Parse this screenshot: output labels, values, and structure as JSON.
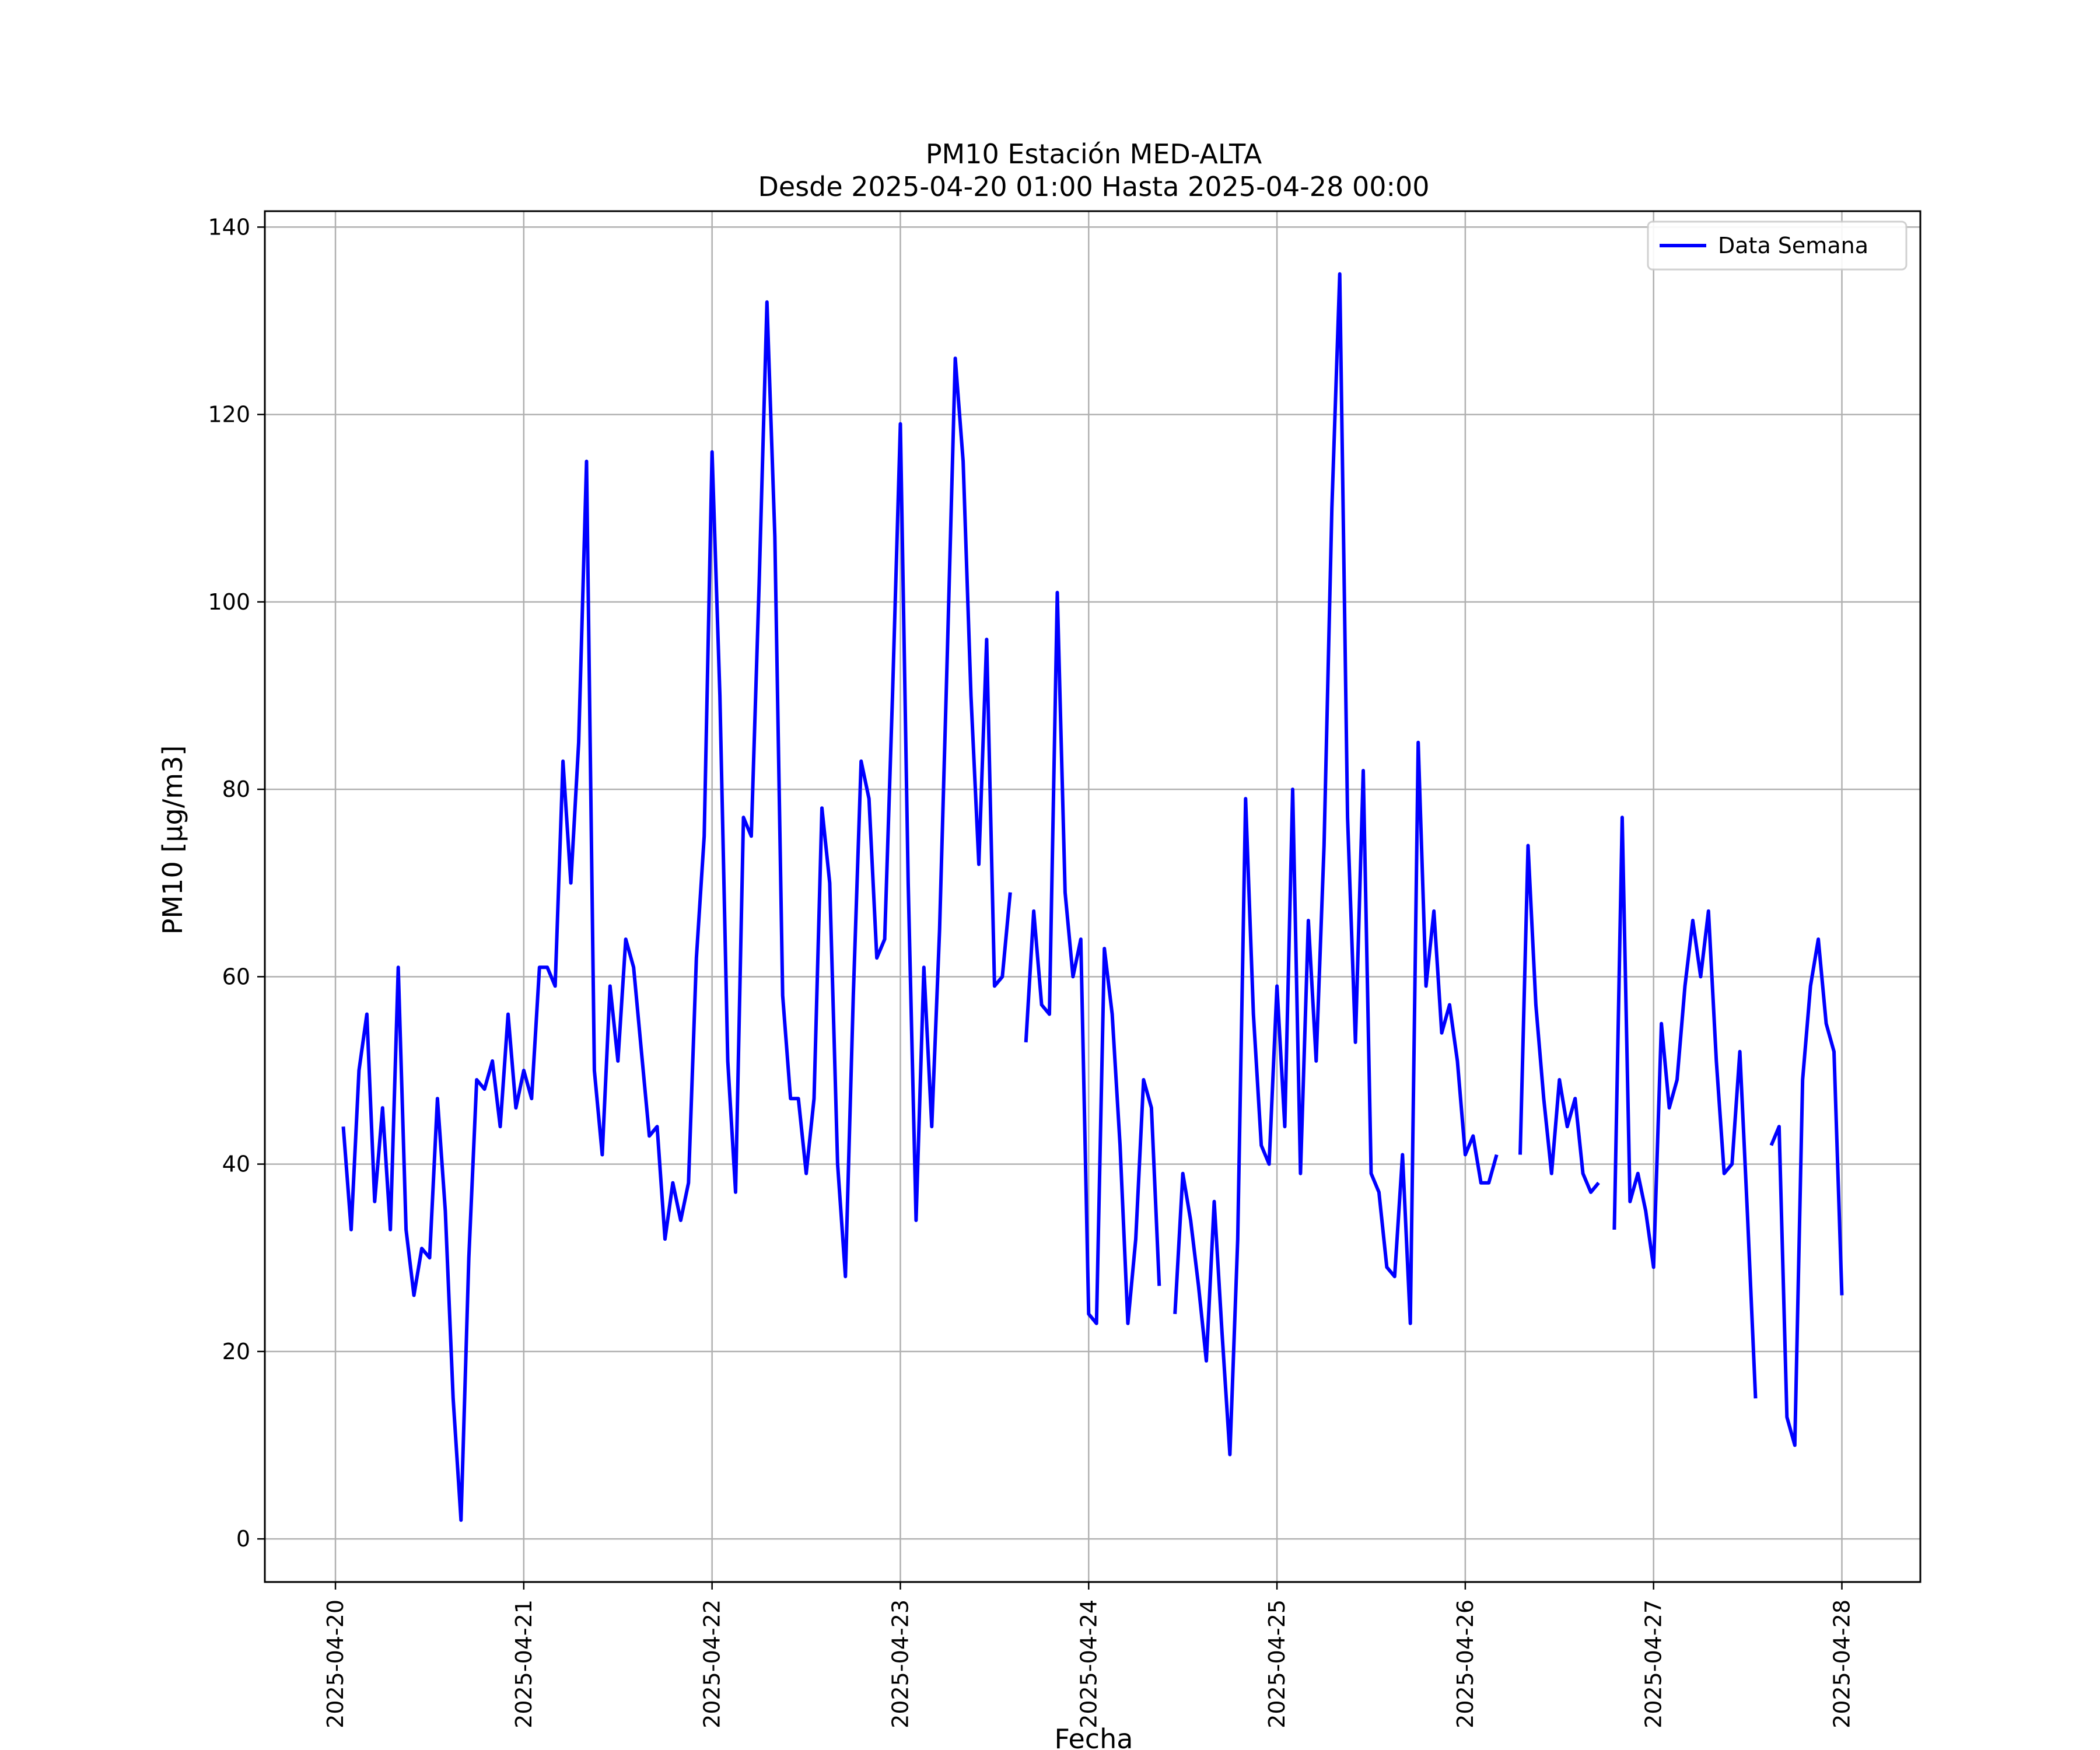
{
  "chart_data": {
    "type": "line",
    "title": "PM10 Estación MED-ALTA",
    "subtitle": "Desde 2025-04-20 01:00 Hasta 2025-04-28 00:00",
    "xlabel": "Fecha",
    "ylabel": "PM10 [μg/m3]",
    "xlim": [
      "2025-04-19 15:00",
      "2025-04-28 10:00"
    ],
    "ylim": [
      -4.6,
      141.7
    ],
    "grid": true,
    "legend": "top-right",
    "x_ticks": [
      "2025-04-20",
      "2025-04-21",
      "2025-04-22",
      "2025-04-23",
      "2025-04-24",
      "2025-04-25",
      "2025-04-26",
      "2025-04-27",
      "2025-04-28"
    ],
    "y_ticks": [
      0,
      20,
      40,
      60,
      80,
      100,
      120,
      140
    ],
    "x_start": "2025-04-20 01:00",
    "x_step_hours": 1,
    "series": [
      {
        "name": "Data Semana",
        "color": "#0000ff",
        "values": [
          44,
          33,
          50,
          56,
          36,
          46,
          33,
          61,
          33,
          26,
          31,
          30,
          47,
          35,
          15,
          2,
          30,
          49,
          48,
          51,
          44,
          56,
          46,
          50,
          47,
          61,
          61,
          59,
          83,
          70,
          85,
          115,
          50,
          41,
          59,
          51,
          64,
          61,
          52,
          43,
          44,
          32,
          38,
          34,
          38,
          62,
          75,
          116,
          90,
          51,
          37,
          77,
          75,
          102,
          132,
          107,
          58,
          47,
          47,
          39,
          47,
          78,
          70,
          40,
          28,
          58,
          83,
          79,
          62,
          64,
          90,
          119,
          70,
          34,
          61,
          44,
          65,
          95,
          126,
          115,
          90,
          72,
          96,
          59,
          60,
          69,
          null,
          53,
          67,
          57,
          56,
          101,
          69,
          60,
          64,
          24,
          23,
          63,
          56,
          42,
          23,
          32,
          49,
          46,
          27,
          null,
          24,
          39,
          34,
          27,
          19,
          36,
          22,
          9,
          32,
          79,
          56,
          42,
          40,
          59,
          44,
          80,
          39,
          66,
          51,
          74,
          110,
          135,
          77,
          53,
          82,
          39,
          37,
          29,
          28,
          41,
          23,
          85,
          59,
          67,
          54,
          57,
          51,
          41,
          43,
          38,
          38,
          41,
          null,
          null,
          41,
          74,
          57,
          47,
          39,
          49,
          44,
          47,
          39,
          37,
          38,
          null,
          33,
          77,
          36,
          39,
          35,
          29,
          55,
          46,
          49,
          59,
          66,
          60,
          67,
          51,
          39,
          40,
          52,
          34,
          15,
          null,
          42,
          44,
          13,
          10,
          49,
          59,
          64,
          55,
          52,
          26
        ]
      }
    ]
  }
}
